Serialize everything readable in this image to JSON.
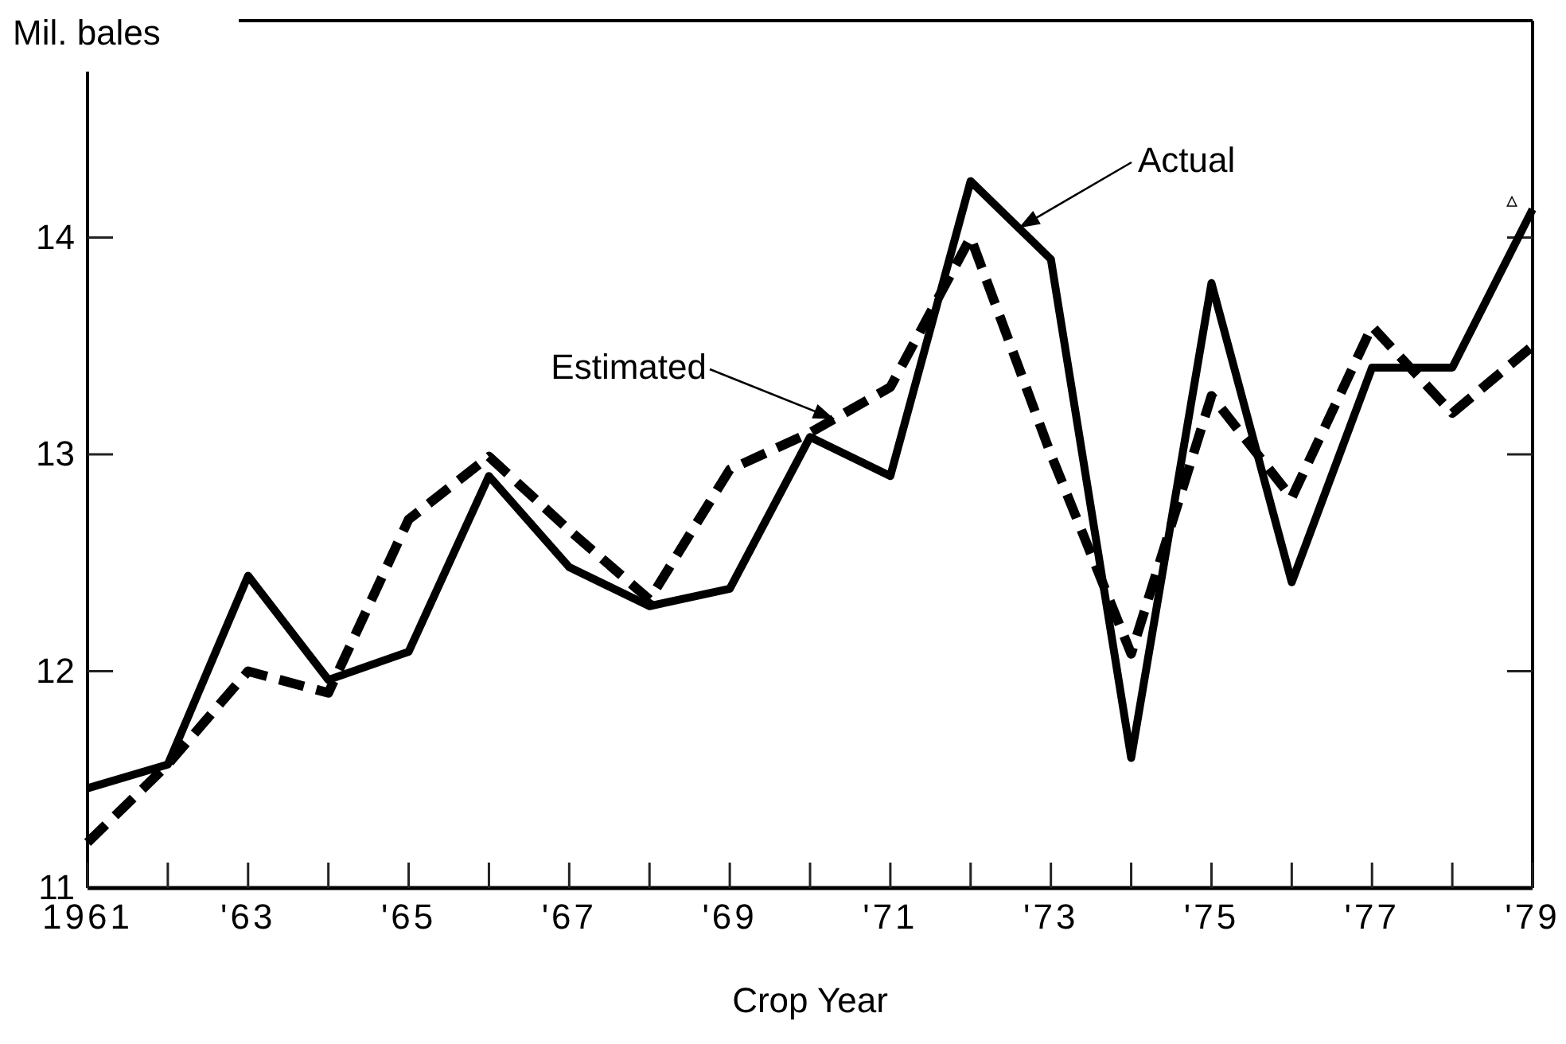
{
  "chart_data": {
    "type": "line",
    "ylabel": "Mil. bales",
    "xlabel": "Crop Year",
    "x": [
      1961,
      1962,
      1963,
      1964,
      1965,
      1966,
      1967,
      1968,
      1969,
      1970,
      1971,
      1972,
      1973,
      1974,
      1975,
      1976,
      1977,
      1978,
      1979
    ],
    "series": [
      {
        "name": "Actual",
        "color": "#000000",
        "line_style": "solid",
        "values": [
          11.46,
          11.57,
          12.44,
          11.96,
          12.09,
          12.9,
          12.48,
          12.3,
          12.38,
          13.08,
          12.9,
          14.26,
          13.9,
          11.6,
          13.79,
          12.41,
          13.4,
          13.4,
          14.13
        ]
      },
      {
        "name": "Estimated",
        "color": "#000000",
        "line_style": "dashed",
        "values": [
          11.21,
          11.57,
          12.0,
          11.9,
          12.7,
          12.99,
          12.65,
          12.33,
          12.93,
          13.1,
          13.31,
          14.0,
          13.0,
          12.08,
          13.27,
          12.8,
          13.59,
          13.19,
          13.5
        ]
      }
    ],
    "xlim": [
      1961,
      1979
    ],
    "xticks": [
      {
        "value": 1961,
        "label": "1961"
      },
      {
        "value": 1962,
        "label": null
      },
      {
        "value": 1963,
        "label": "'63"
      },
      {
        "value": 1964,
        "label": null
      },
      {
        "value": 1965,
        "label": "'65"
      },
      {
        "value": 1966,
        "label": null
      },
      {
        "value": 1967,
        "label": "'67"
      },
      {
        "value": 1968,
        "label": null
      },
      {
        "value": 1969,
        "label": "'69"
      },
      {
        "value": 1970,
        "label": null
      },
      {
        "value": 1971,
        "label": "'71"
      },
      {
        "value": 1972,
        "label": null
      },
      {
        "value": 1973,
        "label": "'73"
      },
      {
        "value": 1974,
        "label": null
      },
      {
        "value": 1975,
        "label": "'75"
      },
      {
        "value": 1976,
        "label": null
      },
      {
        "value": 1977,
        "label": "'77"
      },
      {
        "value": 1978,
        "label": null
      },
      {
        "value": 1979,
        "label": "'79"
      }
    ],
    "ylim": [
      11,
      15
    ],
    "yticks": [
      11,
      12,
      13,
      14
    ],
    "annotations": [
      "▵"
    ],
    "grid": false,
    "marker": "none"
  }
}
